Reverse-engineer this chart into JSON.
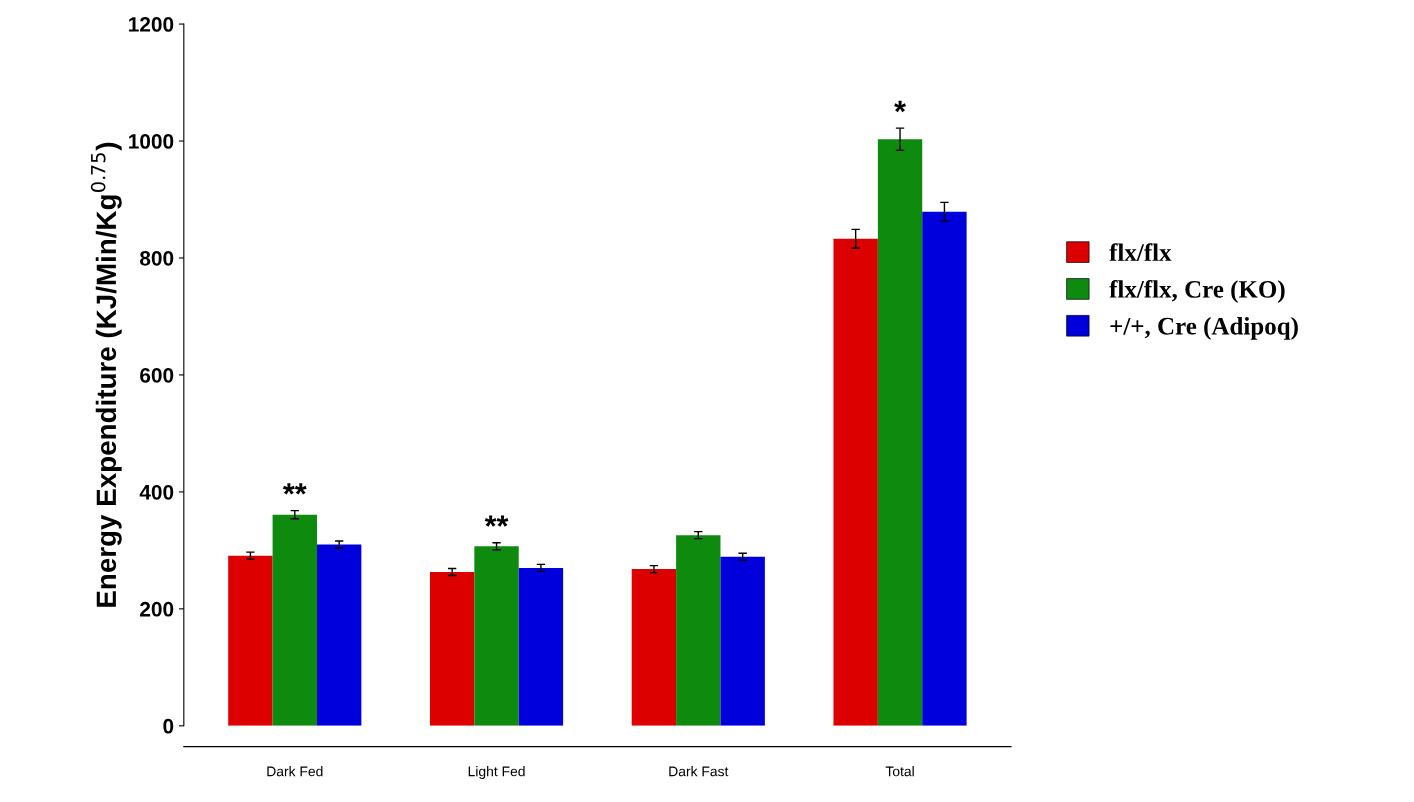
{
  "chart_data": {
    "type": "bar",
    "ylabel": "Energy Expenditure (KJ/Min/Kg$^{0.75}$)",
    "categories": [
      "Dark Fed",
      "Light Fed",
      "Dark Fast",
      "Total"
    ],
    "series": [
      {
        "name": "flx/flx",
        "color": "#dd0000",
        "values": [
          291,
          263,
          268,
          833
        ],
        "errors": [
          6,
          6,
          6,
          16
        ]
      },
      {
        "name": "flx/flx, Cre (KO)",
        "color": "#0e8a0e",
        "values": [
          361,
          307,
          326,
          1003
        ],
        "errors": [
          7,
          6,
          6,
          19
        ]
      },
      {
        "name": "+/+, Cre (Adipoq)",
        "color": "#0000dd",
        "values": [
          310,
          270,
          289,
          879
        ],
        "errors": [
          6,
          6,
          6,
          16
        ]
      }
    ],
    "ylim": [
      0,
      1200
    ],
    "yticks": [
      0,
      200,
      400,
      600,
      800,
      1000,
      1200
    ],
    "annotations": [
      {
        "text": "**",
        "x": "Dark Fed",
        "y": 368
      },
      {
        "text": "**",
        "x": "Light Fed",
        "y": 313
      },
      {
        "text": "*",
        "x": "Total",
        "y": 1022
      }
    ],
    "grid": false,
    "legend": "right"
  }
}
